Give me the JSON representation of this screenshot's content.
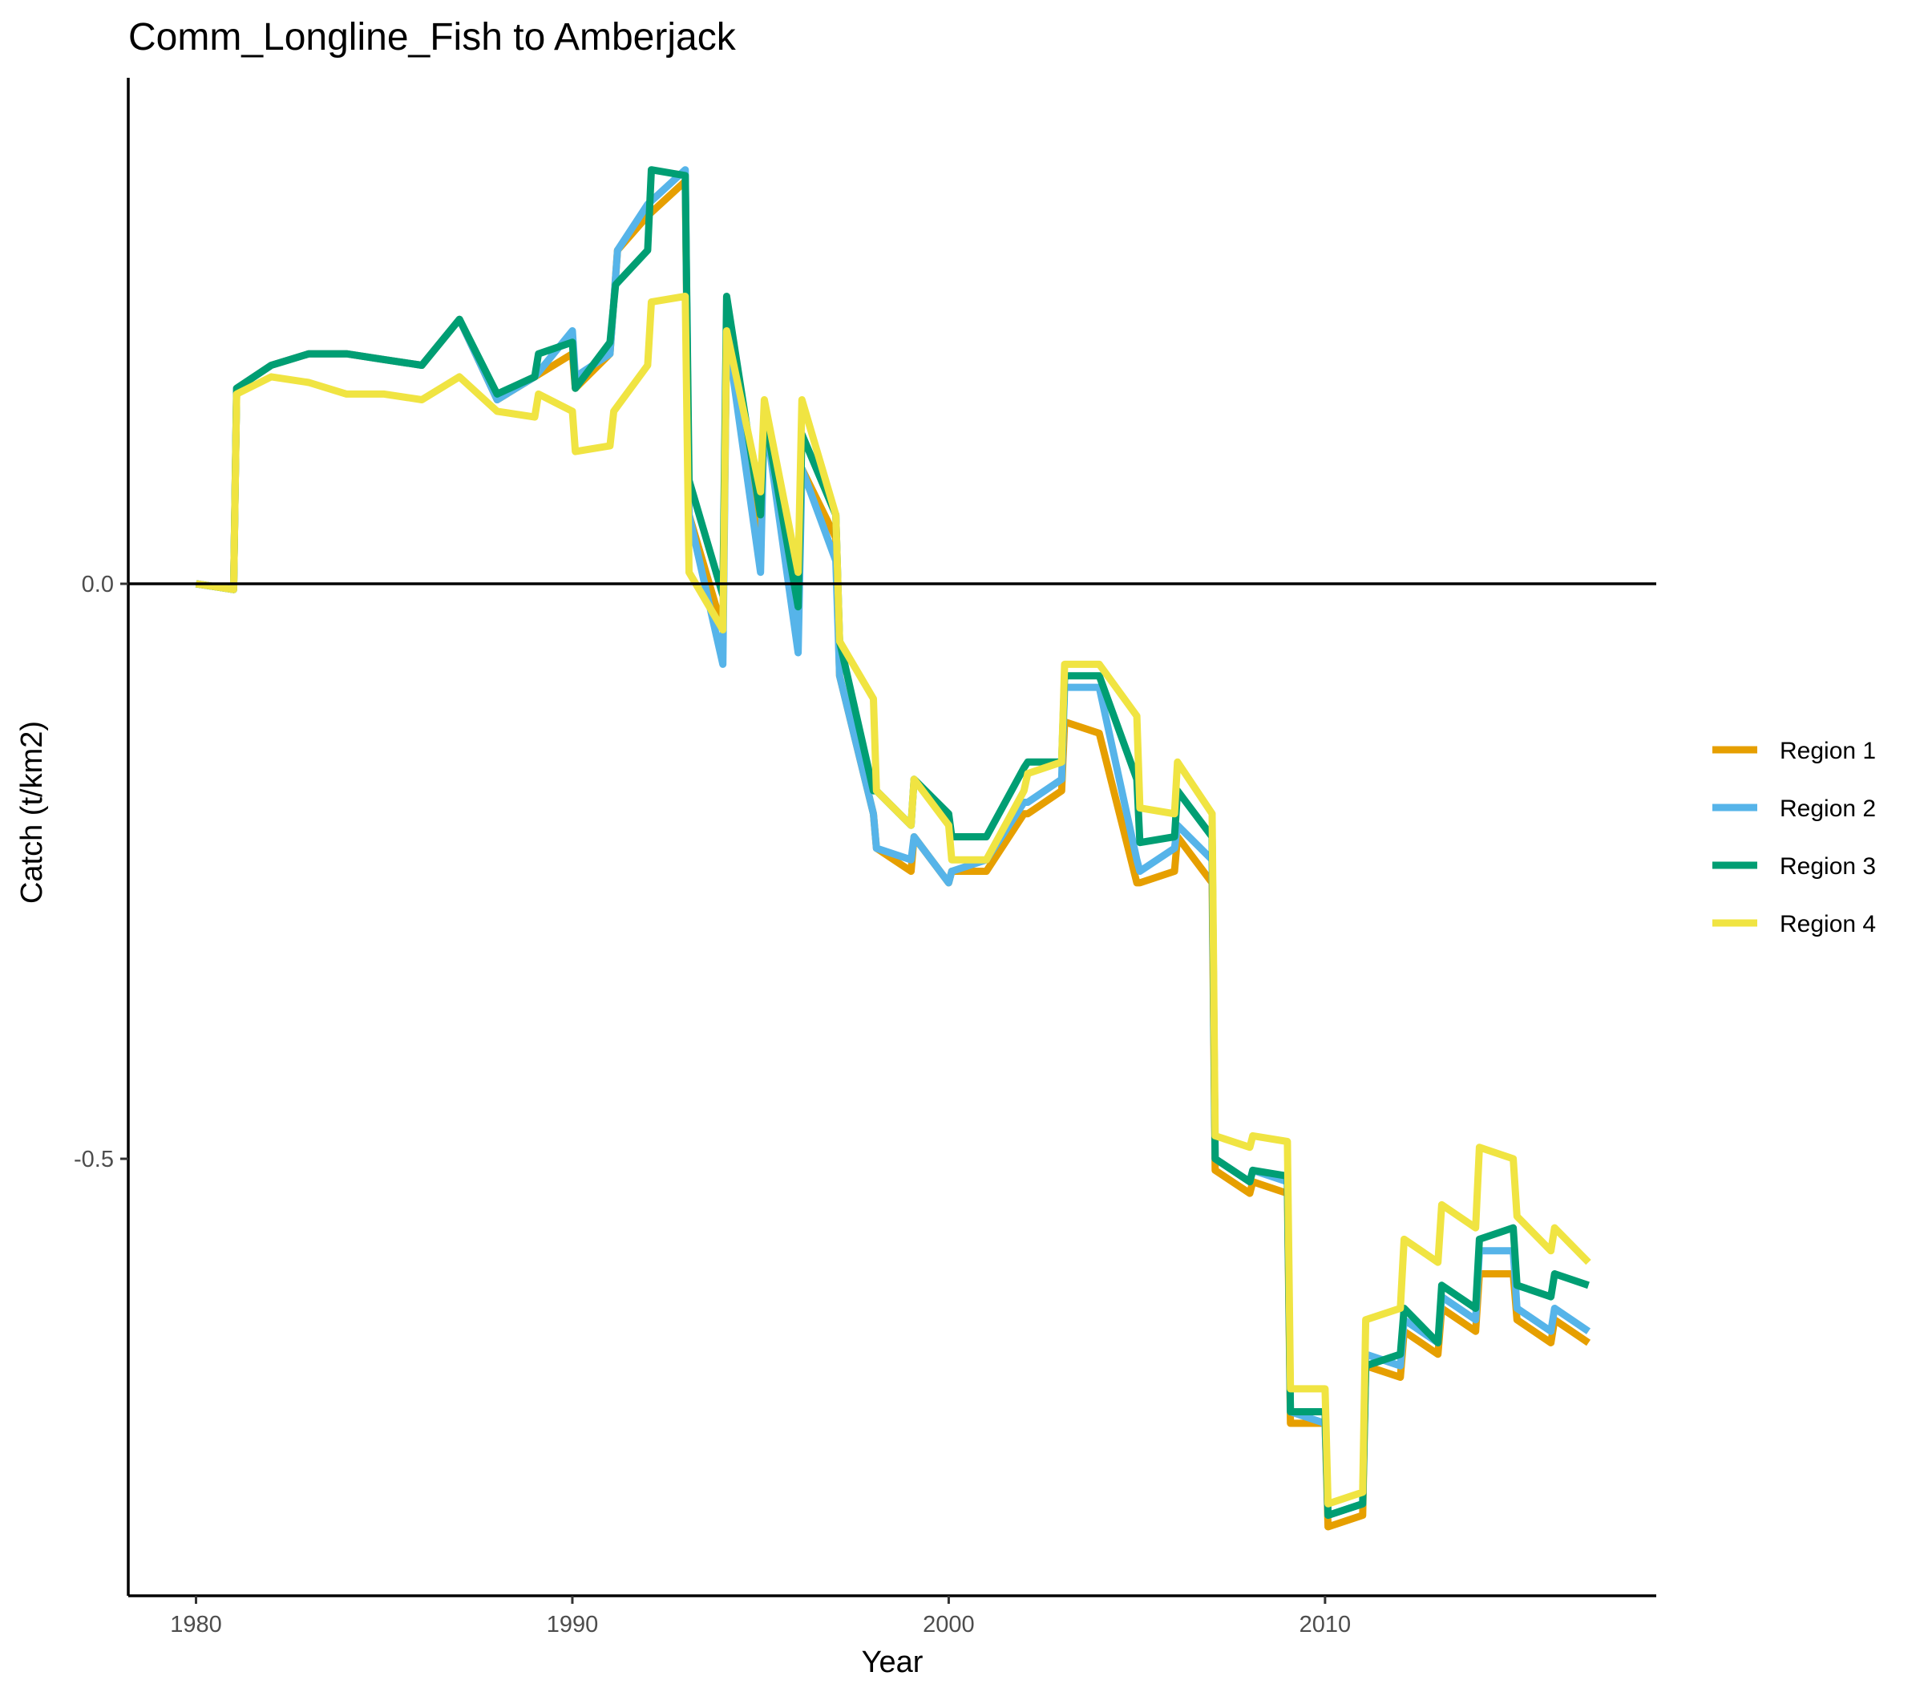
{
  "chart_data": {
    "type": "line",
    "title": "Comm_Longline_Fish to Amberjack",
    "xlabel": "Year",
    "ylabel": "Catch (t/km2)",
    "xlim": [
      1978.2,
      2018.8
    ],
    "ylim": [
      -0.88,
      0.44
    ],
    "xticks": [
      1980,
      1990,
      2000,
      2010
    ],
    "xtick_labels": [
      "1980",
      "1990",
      "2000",
      "2010"
    ],
    "yticks": [
      0.0,
      -0.5
    ],
    "ytick_labels": [
      "0.0",
      "-0.5"
    ],
    "zero_line": true,
    "grid": false,
    "legend_position": "right",
    "series": [
      {
        "name": "Region 1",
        "color": "#E69F00",
        "points": [
          [
            1980,
            0
          ],
          [
            1981,
            -0.005
          ],
          [
            1981.08,
            0.17
          ],
          [
            1982,
            0.19
          ],
          [
            1983,
            0.2
          ],
          [
            1984,
            0.2
          ],
          [
            1985,
            0.195
          ],
          [
            1986,
            0.19
          ],
          [
            1987,
            0.23
          ],
          [
            1988,
            0.16
          ],
          [
            1989,
            0.18
          ],
          [
            1990,
            0.2
          ],
          [
            1990.08,
            0.17
          ],
          [
            1991,
            0.2
          ],
          [
            1991.2,
            0.29
          ],
          [
            1992,
            0.32
          ],
          [
            1993,
            0.35
          ],
          [
            1993.1,
            0.06
          ],
          [
            1994,
            -0.04
          ],
          [
            1994.1,
            0.22
          ],
          [
            1995,
            0.03
          ],
          [
            1995.1,
            0.15
          ],
          [
            1996,
            -0.01
          ],
          [
            1996.1,
            0.1
          ],
          [
            1997,
            0.04
          ],
          [
            1997.1,
            -0.08
          ],
          [
            1998,
            -0.2
          ],
          [
            1998.08,
            -0.23
          ],
          [
            1999,
            -0.25
          ],
          [
            1999.08,
            -0.22
          ],
          [
            2000,
            -0.26
          ],
          [
            2000.08,
            -0.25
          ],
          [
            2001,
            -0.25
          ],
          [
            2002,
            -0.2
          ],
          [
            2002.1,
            -0.2
          ],
          [
            2003,
            -0.18
          ],
          [
            2003.08,
            -0.12
          ],
          [
            2004,
            -0.13
          ],
          [
            2005,
            -0.26
          ],
          [
            2005.08,
            -0.26
          ],
          [
            2006,
            -0.25
          ],
          [
            2006.08,
            -0.22
          ],
          [
            2007,
            -0.26
          ],
          [
            2007.08,
            -0.51
          ],
          [
            2008,
            -0.53
          ],
          [
            2008.08,
            -0.52
          ],
          [
            2009,
            -0.53
          ],
          [
            2009.08,
            -0.73
          ],
          [
            2010,
            -0.73
          ],
          [
            2010.08,
            -0.82
          ],
          [
            2011,
            -0.81
          ],
          [
            2011.08,
            -0.68
          ],
          [
            2012,
            -0.69
          ],
          [
            2012.1,
            -0.65
          ],
          [
            2013,
            -0.67
          ],
          [
            2013.1,
            -0.63
          ],
          [
            2014,
            -0.65
          ],
          [
            2014.1,
            -0.6
          ],
          [
            2015,
            -0.6
          ],
          [
            2015.1,
            -0.64
          ],
          [
            2016,
            -0.66
          ],
          [
            2016.1,
            -0.64
          ],
          [
            2017,
            -0.66
          ]
        ]
      },
      {
        "name": "Region 2",
        "color": "#56B4E9",
        "points": [
          [
            1980,
            0
          ],
          [
            1981,
            -0.005
          ],
          [
            1981.08,
            0.17
          ],
          [
            1982,
            0.19
          ],
          [
            1983,
            0.2
          ],
          [
            1984,
            0.2
          ],
          [
            1985,
            0.195
          ],
          [
            1986,
            0.19
          ],
          [
            1987,
            0.23
          ],
          [
            1988,
            0.16
          ],
          [
            1989,
            0.18
          ],
          [
            1990,
            0.22
          ],
          [
            1990.08,
            0.18
          ],
          [
            1991,
            0.2
          ],
          [
            1991.2,
            0.29
          ],
          [
            1992,
            0.33
          ],
          [
            1993,
            0.36
          ],
          [
            1993.1,
            0.06
          ],
          [
            1994,
            -0.07
          ],
          [
            1994.1,
            0.22
          ],
          [
            1995,
            0.01
          ],
          [
            1995.1,
            0.15
          ],
          [
            1996,
            -0.06
          ],
          [
            1996.1,
            0.1
          ],
          [
            1997,
            0.02
          ],
          [
            1997.1,
            -0.08
          ],
          [
            1998,
            -0.2
          ],
          [
            1998.08,
            -0.23
          ],
          [
            1999,
            -0.24
          ],
          [
            1999.08,
            -0.22
          ],
          [
            2000,
            -0.26
          ],
          [
            2000.08,
            -0.25
          ],
          [
            2001,
            -0.24
          ],
          [
            2002,
            -0.19
          ],
          [
            2002.1,
            -0.19
          ],
          [
            2003,
            -0.17
          ],
          [
            2003.08,
            -0.09
          ],
          [
            2004,
            -0.09
          ],
          [
            2005,
            -0.24
          ],
          [
            2005.08,
            -0.25
          ],
          [
            2006,
            -0.23
          ],
          [
            2006.08,
            -0.21
          ],
          [
            2007,
            -0.24
          ],
          [
            2007.08,
            -0.5
          ],
          [
            2008,
            -0.52
          ],
          [
            2008.08,
            -0.51
          ],
          [
            2009,
            -0.52
          ],
          [
            2009.08,
            -0.72
          ],
          [
            2010,
            -0.73
          ],
          [
            2010.08,
            -0.81
          ],
          [
            2011,
            -0.8
          ],
          [
            2011.08,
            -0.67
          ],
          [
            2012,
            -0.68
          ],
          [
            2012.1,
            -0.64
          ],
          [
            2013,
            -0.66
          ],
          [
            2013.1,
            -0.62
          ],
          [
            2014,
            -0.64
          ],
          [
            2014.1,
            -0.58
          ],
          [
            2015,
            -0.58
          ],
          [
            2015.1,
            -0.63
          ],
          [
            2016,
            -0.65
          ],
          [
            2016.1,
            -0.63
          ],
          [
            2017,
            -0.65
          ]
        ]
      },
      {
        "name": "Region 3",
        "color": "#009E73",
        "points": [
          [
            1980,
            0
          ],
          [
            1981,
            -0.005
          ],
          [
            1981.08,
            0.17
          ],
          [
            1982,
            0.19
          ],
          [
            1983,
            0.2
          ],
          [
            1984,
            0.2
          ],
          [
            1985,
            0.195
          ],
          [
            1986,
            0.19
          ],
          [
            1987,
            0.23
          ],
          [
            1988,
            0.165
          ],
          [
            1989,
            0.18
          ],
          [
            1989.1,
            0.2
          ],
          [
            1990,
            0.21
          ],
          [
            1990.08,
            0.17
          ],
          [
            1991,
            0.21
          ],
          [
            1991.15,
            0.26
          ],
          [
            1992,
            0.29
          ],
          [
            1992.1,
            0.36
          ],
          [
            1993,
            0.355
          ],
          [
            1993.1,
            0.09
          ],
          [
            1994,
            -0.01
          ],
          [
            1994.1,
            0.25
          ],
          [
            1995,
            0.06
          ],
          [
            1995.1,
            0.15
          ],
          [
            1996,
            -0.02
          ],
          [
            1996.1,
            0.13
          ],
          [
            1997,
            0.06
          ],
          [
            1997.1,
            -0.05
          ],
          [
            1998,
            -0.18
          ],
          [
            1998.08,
            -0.18
          ],
          [
            1999,
            -0.21
          ],
          [
            1999.08,
            -0.17
          ],
          [
            2000,
            -0.2
          ],
          [
            2000.08,
            -0.22
          ],
          [
            2001,
            -0.22
          ],
          [
            2002,
            -0.16
          ],
          [
            2002.1,
            -0.155
          ],
          [
            2003,
            -0.155
          ],
          [
            2003.08,
            -0.08
          ],
          [
            2004,
            -0.08
          ],
          [
            2005,
            -0.17
          ],
          [
            2005.08,
            -0.225
          ],
          [
            2006,
            -0.22
          ],
          [
            2006.08,
            -0.18
          ],
          [
            2007,
            -0.22
          ],
          [
            2007.08,
            -0.5
          ],
          [
            2008,
            -0.52
          ],
          [
            2008.08,
            -0.51
          ],
          [
            2009,
            -0.515
          ],
          [
            2009.08,
            -0.72
          ],
          [
            2010,
            -0.72
          ],
          [
            2010.08,
            -0.81
          ],
          [
            2011,
            -0.8
          ],
          [
            2011.08,
            -0.68
          ],
          [
            2012,
            -0.67
          ],
          [
            2012.1,
            -0.63
          ],
          [
            2013,
            -0.66
          ],
          [
            2013.1,
            -0.61
          ],
          [
            2014,
            -0.63
          ],
          [
            2014.1,
            -0.57
          ],
          [
            2015,
            -0.56
          ],
          [
            2015.1,
            -0.61
          ],
          [
            2016,
            -0.62
          ],
          [
            2016.1,
            -0.6
          ],
          [
            2017,
            -0.61
          ]
        ]
      },
      {
        "name": "Region 4",
        "color": "#F0E442",
        "points": [
          [
            1980,
            0
          ],
          [
            1981,
            -0.005
          ],
          [
            1981.08,
            0.165
          ],
          [
            1982,
            0.18
          ],
          [
            1983,
            0.175
          ],
          [
            1984,
            0.165
          ],
          [
            1985,
            0.165
          ],
          [
            1986,
            0.16
          ],
          [
            1987,
            0.18
          ],
          [
            1988,
            0.15
          ],
          [
            1989,
            0.145
          ],
          [
            1989.1,
            0.165
          ],
          [
            1990,
            0.15
          ],
          [
            1990.08,
            0.115
          ],
          [
            1991,
            0.12
          ],
          [
            1991.1,
            0.15
          ],
          [
            1992,
            0.19
          ],
          [
            1992.1,
            0.245
          ],
          [
            1993,
            0.25
          ],
          [
            1993.1,
            0.01
          ],
          [
            1994,
            -0.04
          ],
          [
            1994.1,
            0.22
          ],
          [
            1995,
            0.08
          ],
          [
            1995.1,
            0.16
          ],
          [
            1996,
            0.01
          ],
          [
            1996.1,
            0.16
          ],
          [
            1997,
            0.06
          ],
          [
            1997.1,
            -0.05
          ],
          [
            1998,
            -0.1
          ],
          [
            1998.08,
            -0.18
          ],
          [
            1999,
            -0.21
          ],
          [
            1999.08,
            -0.17
          ],
          [
            2000,
            -0.21
          ],
          [
            2000.08,
            -0.24
          ],
          [
            2001,
            -0.24
          ],
          [
            2002,
            -0.18
          ],
          [
            2002.1,
            -0.165
          ],
          [
            2003,
            -0.155
          ],
          [
            2003.08,
            -0.07
          ],
          [
            2004,
            -0.07
          ],
          [
            2005,
            -0.115
          ],
          [
            2005.08,
            -0.195
          ],
          [
            2006,
            -0.2
          ],
          [
            2006.08,
            -0.155
          ],
          [
            2007,
            -0.2
          ],
          [
            2007.08,
            -0.48
          ],
          [
            2008,
            -0.49
          ],
          [
            2008.08,
            -0.48
          ],
          [
            2009,
            -0.485
          ],
          [
            2009.08,
            -0.7
          ],
          [
            2010,
            -0.7
          ],
          [
            2010.08,
            -0.8
          ],
          [
            2011,
            -0.79
          ],
          [
            2011.08,
            -0.64
          ],
          [
            2012,
            -0.63
          ],
          [
            2012.1,
            -0.57
          ],
          [
            2013,
            -0.59
          ],
          [
            2013.1,
            -0.54
          ],
          [
            2014,
            -0.56
          ],
          [
            2014.1,
            -0.49
          ],
          [
            2015,
            -0.5
          ],
          [
            2015.1,
            -0.55
          ],
          [
            2016,
            -0.58
          ],
          [
            2016.1,
            -0.56
          ],
          [
            2017,
            -0.59
          ]
        ]
      }
    ]
  }
}
